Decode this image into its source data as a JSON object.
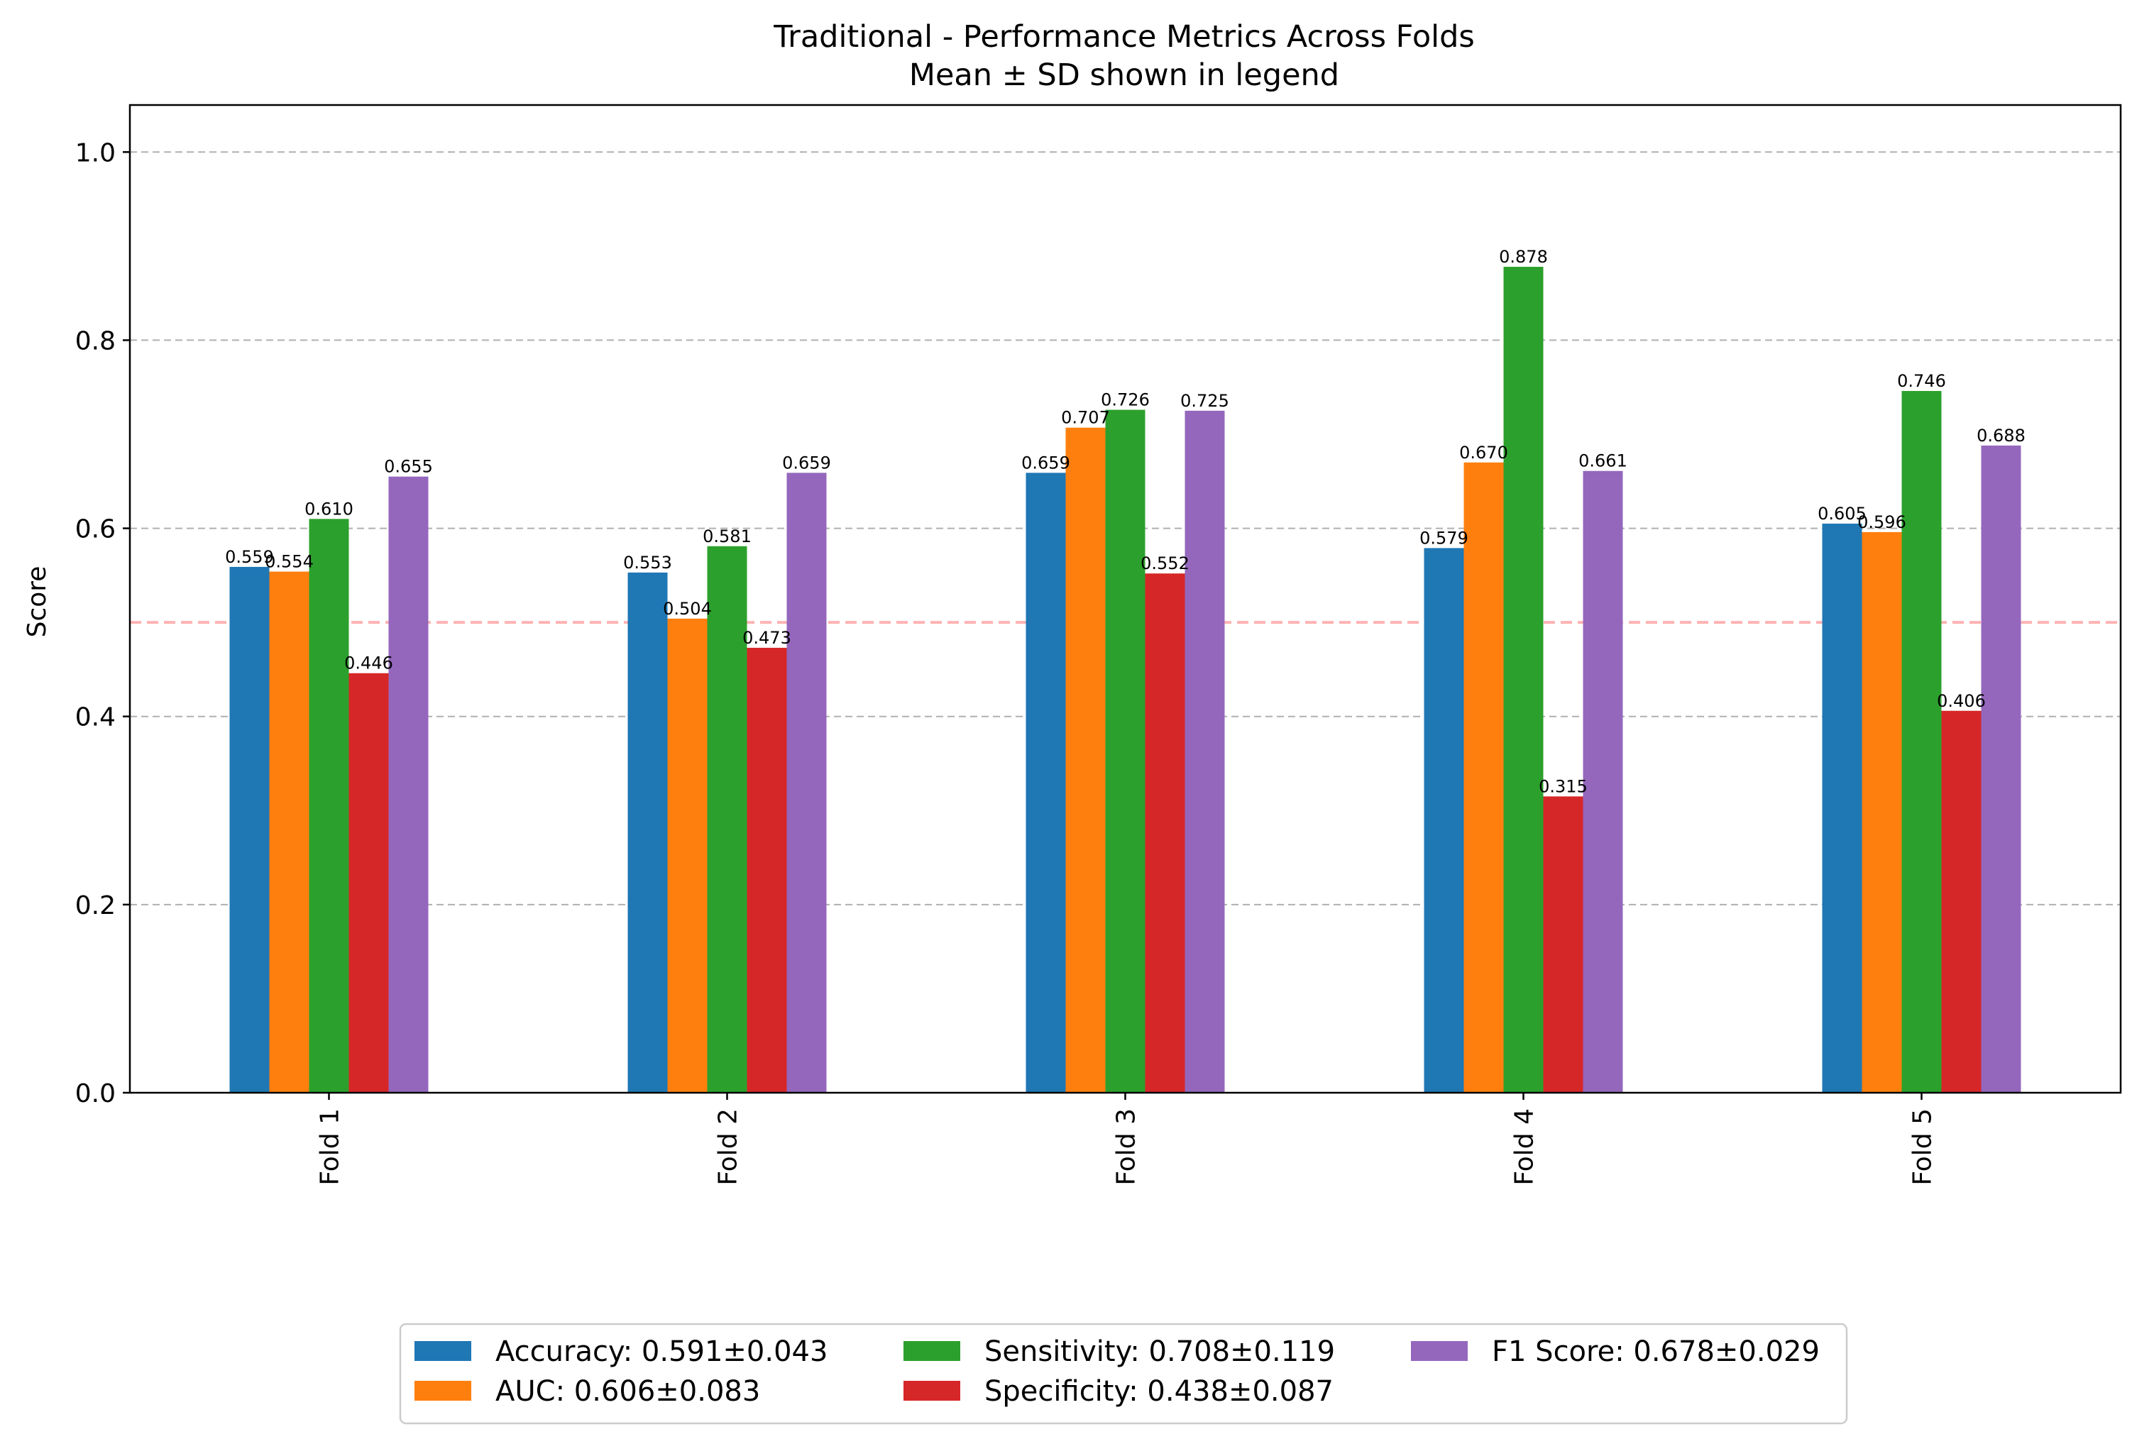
{
  "chart_data": {
    "type": "bar",
    "title": "Traditional - Performance Metrics Across Folds",
    "subtitle": "Mean ± SD shown in legend",
    "xlabel": "",
    "ylabel": "Score",
    "ylim": [
      0,
      1.05
    ],
    "yticks": [
      "0.0",
      "0.2",
      "0.4",
      "0.6",
      "0.8",
      "1.0"
    ],
    "categories": [
      "Fold 1",
      "Fold 2",
      "Fold 3",
      "Fold 4",
      "Fold 5"
    ],
    "grid": "horizontal dashed",
    "reference_line": 0.5,
    "legend_placement": "bottom-center",
    "series": [
      {
        "name": "Accuracy",
        "legend_label": "Accuracy: 0.591±0.043",
        "color": "#1f77b4",
        "values": [
          0.559,
          0.553,
          0.659,
          0.579,
          0.605
        ],
        "labels": [
          "0.559",
          "0.553",
          "0.659",
          "0.579",
          "0.605"
        ]
      },
      {
        "name": "AUC",
        "legend_label": "AUC: 0.606±0.083",
        "color": "#ff7f0e",
        "values": [
          0.554,
          0.504,
          0.707,
          0.67,
          0.596
        ],
        "labels": [
          "0.554",
          "0.504",
          "0.707",
          "0.670",
          "0.596"
        ]
      },
      {
        "name": "Sensitivity",
        "legend_label": "Sensitivity: 0.708±0.119",
        "color": "#2ca02c",
        "values": [
          0.61,
          0.581,
          0.726,
          0.878,
          0.746
        ],
        "labels": [
          "0.610",
          "0.581",
          "0.726",
          "0.878",
          "0.746"
        ]
      },
      {
        "name": "Specificity",
        "legend_label": "Specificity: 0.438±0.087",
        "color": "#d62728",
        "values": [
          0.446,
          0.473,
          0.552,
          0.315,
          0.406
        ],
        "labels": [
          "0.446",
          "0.473",
          "0.552",
          "0.315",
          "0.406"
        ]
      },
      {
        "name": "F1 Score",
        "legend_label": "F1 Score: 0.678±0.029",
        "color": "#9467bd",
        "values": [
          0.655,
          0.659,
          0.725,
          0.661,
          0.688
        ],
        "labels": [
          "0.655",
          "0.659",
          "0.725",
          "0.661",
          "0.688"
        ]
      }
    ]
  }
}
